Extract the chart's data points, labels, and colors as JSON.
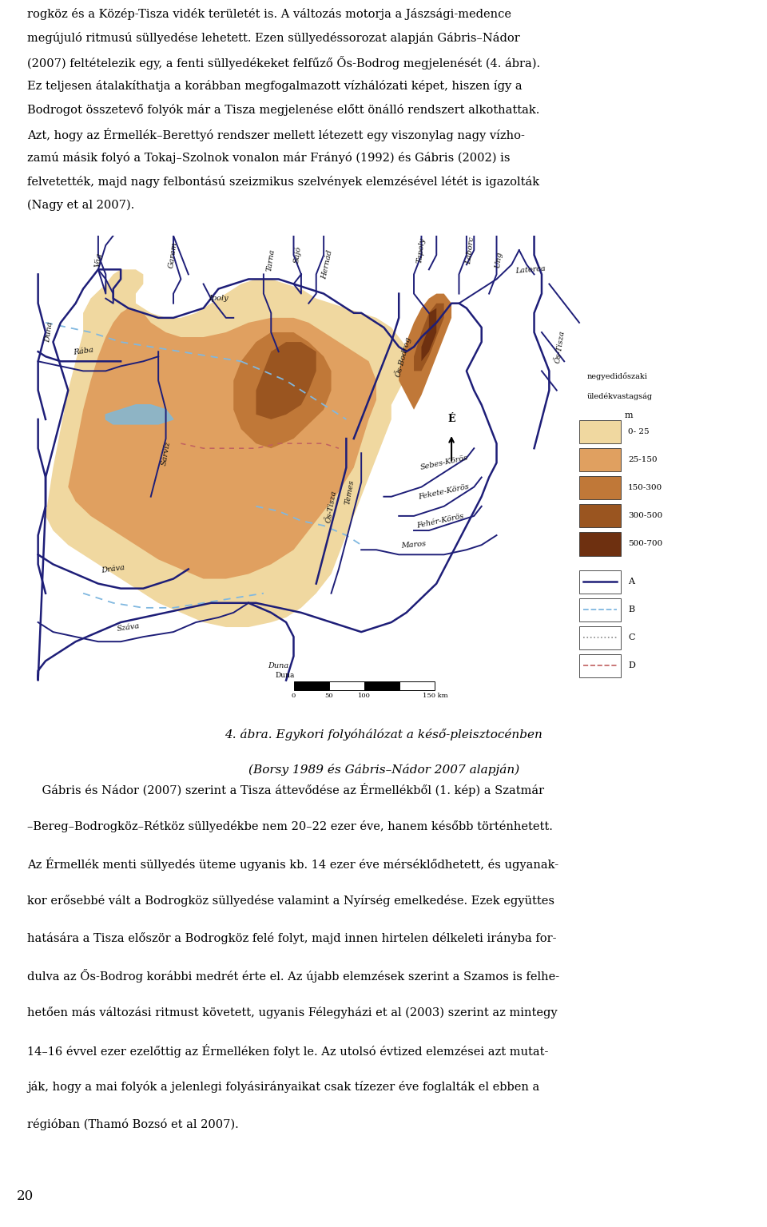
{
  "page_width": 9.6,
  "page_height": 15.16,
  "background_color": "#ffffff",
  "text_color": "#000000",
  "top_paragraph": "rogköz és a Közép-Tisza vidék területét is. A változás motorja a Jászsági-medence megújuló ritmusú süllyedése lehetett. Ezen süllyedéssorozat alapján Gábris–Nádor (2007) feltételezik egy, a fenti süllyedékeket felfűző Ős-Bodrog megjelenését (4. ábra). Ez teljesen átalakíthatja a korábban megfogalmazott vízhálózati képet, hiszen így a Bodrogot összetevő folyók már a Tisza megjelenése előtt önálló rendszert alkothattak. Azt, hogy az Érmellék–Berettyó rendszer mellett létezett egy viszonylag nagy vízho-zamú másik folyó a Tokaj–Szolnok vonalon már Frányó (1992) és Gábris (2002) is felvetették, majd nagy felbontású szeizmikus szelvények elemzésével létét is igazolták (Nagy et al 2007).",
  "top_lines": [
    "rogköz és a Közép-Tisza vidék területét is. A változás motorja a Jászsági-medence",
    "megújuló ritmusú süllyedése lehetett. Ezen süllyedéssorozat alapján Gábris–Nádor",
    "(2007) feltételezik egy, a fenti süllyedékeket felfűző Ős-Bodrog megjelenését (4. ábra).",
    "Ez teljesen átalakíthatja a korábban megfogalmazott vízhálózati képet, hiszen így a",
    "Bodrogot összetevő folyók már a Tisza megjelenése előtt önálló rendszert alkothattak.",
    "Azt, hogy az Érmellék–Berettyó rendszer mellett létezett egy viszonylag nagy vízho-",
    "zamú másik folyó a Tokaj–Szolnok vonalon már Frányó (1992) és Gábris (2002) is",
    "felvetették, majd nagy felbontású szeizmikus szelvények elemzésével létét is igazolták",
    "(Nagy et al 2007)."
  ],
  "caption_line1": "4. ábra. Egykori folyóhálózat a késő-pleisztocénben",
  "caption_line2": "(Borsy 1989 és Gábris–Nádor 2007 alapján)",
  "bottom_lines": [
    "    Gábris és Nádor (2007) szerint a Tisza áttevődése az Érmellékből (1. kép) a Szatmár",
    "–Bereg–Bodrogköz–Rétköz süllyedékbe nem 20–22 ezer éve, hanem később történhetett.",
    "Az Érmellék menti süllyedés üteme ugyanis kb. 14 ezer éve mérséklődhetett, és ugyanak-",
    "kor erősebbé vált a Bodrogköz süllyedése valamint a Nyírség emelkedése. Ezek együttes",
    "hatására a Tisza először a Bodrogköz felé folyt, majd innen hirtelen délkeleti irányba for-",
    "dulva az Ős-Bodrog korábbi medrét érte el. Az újabb elemzések szerint a Szamos is felhe-",
    "hetően más változási ritmust követett, ugyanis Félegyházi et al (2003) szerint az mintegy",
    "14–16 évvel ezer ezelőttig az Érmelléken folyt le. Az utolsó évtized elemzései azt mutat-",
    "ják, hogy a mai folyók a jelenlegi folyásirányaikat csak tízezer éve foglalták el ebben a",
    "régióban (Thamó Bozsó et al 2007)."
  ],
  "page_num": "20",
  "map_color_0_25": "#f0d8a0",
  "map_color_25_150": "#e0a060",
  "map_color_150_300": "#c07838",
  "map_color_300_500": "#9a5520",
  "map_color_500_700": "#6e3010",
  "river_color": "#1e1e78",
  "paleo_river_color": "#80b8e0",
  "dashed_river_color": "#c06060",
  "lake_color": "#80b8d8",
  "font_size_body": 10.5,
  "font_size_caption": 11.0,
  "font_size_label": 7.0,
  "font_size_legend": 8.0
}
